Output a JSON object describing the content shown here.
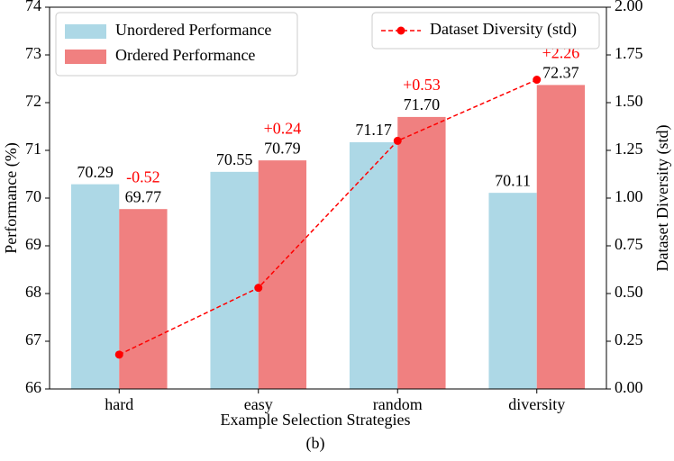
{
  "chart_data": {
    "type": "bar",
    "xlabel": "Example Selection Strategies",
    "ylabel": "Performance (%)",
    "y2label": "Dataset Diversity (std)",
    "caption": "(b)",
    "categories": [
      "hard",
      "easy",
      "random",
      "diversity"
    ],
    "series": [
      {
        "name": "Unordered Performance",
        "color": "#add8e6",
        "values": [
          70.29,
          70.55,
          71.17,
          70.11
        ]
      },
      {
        "name": "Ordered Performance",
        "color": "#f08080",
        "values": [
          69.77,
          70.79,
          71.7,
          72.37
        ],
        "value_labels": [
          "69.77",
          "70.79",
          "71.70",
          "72.37"
        ],
        "annotations": [
          "-0.52",
          "+0.24",
          "+0.53",
          "+2.26"
        ],
        "annotation_color": "#ff0000"
      },
      {
        "name": "Dataset Diversity (std)",
        "color": "#ff0000",
        "axis": "y2",
        "values": [
          0.18,
          0.53,
          1.3,
          1.62
        ]
      }
    ],
    "ylim": [
      66,
      74
    ],
    "yticks": [
      66,
      67,
      68,
      69,
      70,
      71,
      72,
      73,
      74
    ],
    "y2lim": [
      0,
      2
    ],
    "y2ticks": [
      {
        "value": 0,
        "label": "0.00"
      },
      {
        "value": 0.25,
        "label": "0.25"
      },
      {
        "value": 0.5,
        "label": "0.50"
      },
      {
        "value": 0.75,
        "label": "0.75"
      },
      {
        "value": 1,
        "label": "1.00"
      },
      {
        "value": 1.25,
        "label": "1.25"
      },
      {
        "value": 1.5,
        "label": "1.50"
      },
      {
        "value": 1.75,
        "label": "1.75"
      },
      {
        "value": 2,
        "label": "2.00"
      }
    ]
  }
}
